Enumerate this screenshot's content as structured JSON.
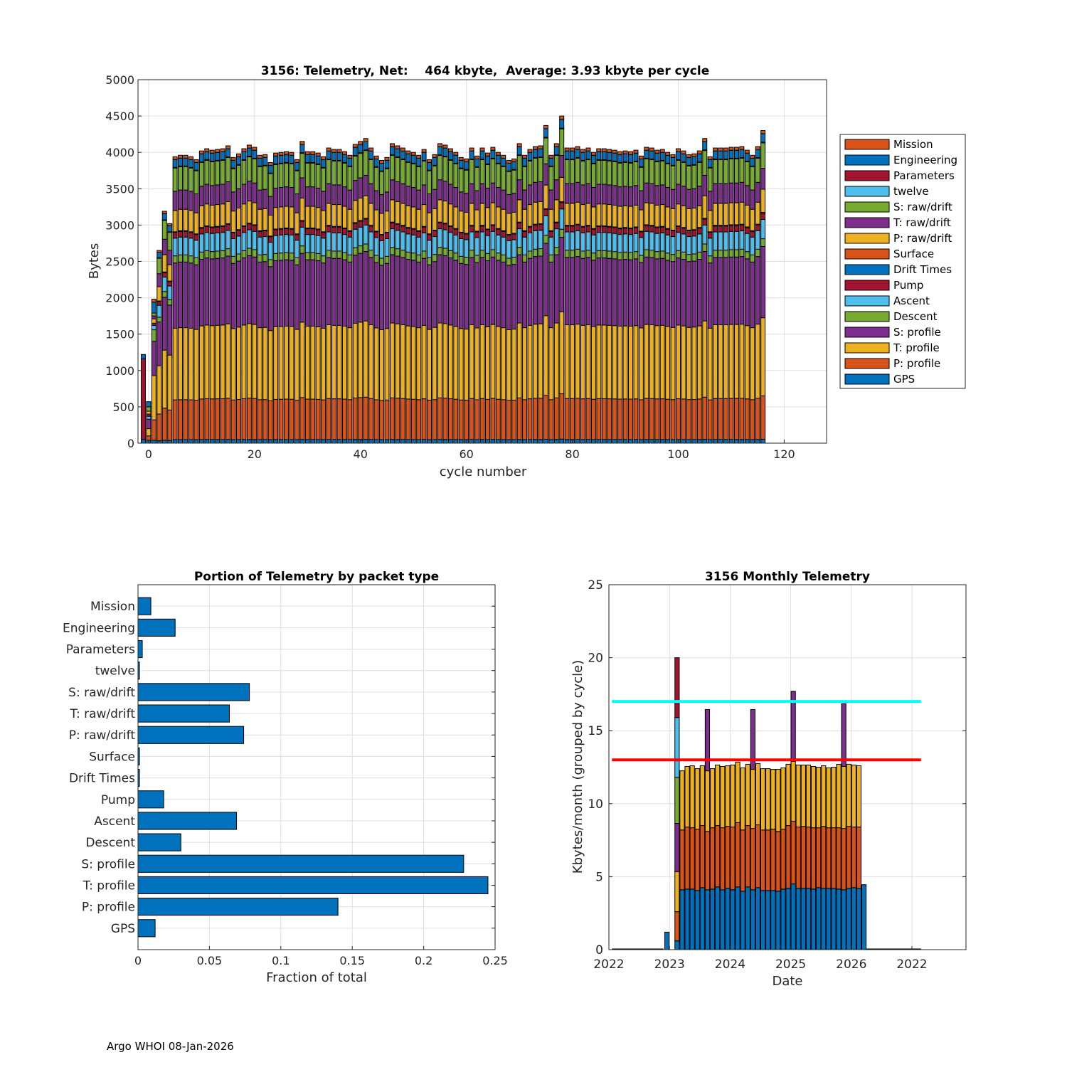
{
  "footer": "Argo WHOI 08-Jan-2026",
  "colors": {
    "blue": "#0072BD",
    "orange": "#D95319",
    "yellow": "#EDB120",
    "purple": "#7E2F8E",
    "green": "#77AC30",
    "cyan": "#4DBEEE",
    "red": "#A2142F"
  },
  "chart_data": [
    {
      "type": "bar",
      "stacked": true,
      "title": "3156: Telemetry, Net:    464 kbyte,  Average: 3.93 kbyte per cycle",
      "xlabel": "cycle number",
      "ylabel": "Bytes",
      "xlim": [
        -2,
        128
      ],
      "ylim": [
        0,
        5000
      ],
      "xticks": [
        0,
        20,
        40,
        60,
        80,
        100,
        120
      ],
      "yticks": [
        0,
        500,
        1000,
        1500,
        2000,
        2500,
        3000,
        3500,
        4000,
        4500,
        5000
      ],
      "grid": true,
      "legend_position": "right",
      "series_bottom_to_top": [
        "GPS",
        "P: profile",
        "T: profile",
        "S: profile",
        "Descent",
        "Ascent",
        "Pump",
        "Drift Times",
        "Surface",
        "P: raw/drift",
        "T: raw/drift",
        "S: raw/drift",
        "twelve",
        "Parameters",
        "Engineering",
        "Mission"
      ],
      "series_colors": [
        "#0072BD",
        "#D95319",
        "#EDB120",
        "#7E2F8E",
        "#77AC30",
        "#4DBEEE",
        "#A2142F",
        "#0072BD",
        "#D95319",
        "#EDB120",
        "#7E2F8E",
        "#77AC30",
        "#4DBEEE",
        "#A2142F",
        "#0072BD",
        "#D95319"
      ],
      "legend_top_to_bottom": [
        "Mission",
        "Engineering",
        "Parameters",
        "twelve",
        "S: raw/drift",
        "T: raw/drift",
        "P: raw/drift",
        "Surface",
        "Drift Times",
        "Pump",
        "Ascent",
        "Descent",
        "S: profile",
        "T: profile",
        "P: profile",
        "GPS"
      ],
      "typical_cycle_bytes": [
        50,
        560,
        1010,
        920,
        100,
        250,
        80,
        5,
        5,
        300,
        270,
        330,
        2,
        5,
        110,
        40
      ],
      "explicit_cycles": {
        "-1": [
          50,
          0,
          0,
          0,
          0,
          0,
          0,
          0,
          0,
          0,
          0,
          0,
          0,
          1110,
          60,
          0
        ],
        "0": [
          40,
          60,
          100,
          130,
          0,
          40,
          30,
          0,
          0,
          40,
          0,
          60,
          0,
          0,
          70,
          0
        ],
        "1": [
          40,
          280,
          610,
          470,
          160,
          60,
          30,
          0,
          0,
          60,
          40,
          40,
          0,
          0,
          150,
          40
        ]
      },
      "first_scaled_cycle": 2,
      "cycle_totals_from_2": [
        2650,
        3190,
        3020,
        3940,
        3960,
        3960,
        3940,
        3900,
        4020,
        4050,
        4030,
        4040,
        4050,
        4090,
        3930,
        3980,
        4050,
        4100,
        4070,
        3960,
        3970,
        3860,
        3990,
        4000,
        4010,
        4000,
        3900,
        4150,
        4010,
        4010,
        3990,
        3940,
        4060,
        4040,
        4040,
        4010,
        3960,
        4110,
        4150,
        4190,
        4060,
        3950,
        3890,
        3930,
        4120,
        4090,
        4060,
        4020,
        4000,
        3960,
        4040,
        3900,
        3970,
        4120,
        4100,
        4050,
        4000,
        3930,
        3910,
        4060,
        3950,
        4060,
        3990,
        4070,
        4000,
        3960,
        3890,
        3910,
        4120,
        3960,
        4040,
        4080,
        4090,
        4370,
        3960,
        4120,
        4500,
        4060,
        4060,
        4080,
        4040,
        4060,
        4000,
        4050,
        4050,
        4040,
        4030,
        4010,
        4020,
        4010,
        4030,
        3950,
        4070,
        4060,
        4030,
        4040,
        4000,
        3970,
        4050,
        4020,
        3970,
        3980,
        4020,
        4190,
        3940,
        4060,
        4060,
        4060,
        4070,
        4070,
        4080,
        4030,
        3960,
        4080,
        4300
      ]
    },
    {
      "type": "bar",
      "orientation": "horizontal",
      "title": "Portion of Telemetry by packet type",
      "xlabel": "Fraction of total",
      "xlim": [
        0,
        0.25
      ],
      "xticks": [
        "0",
        "0.05",
        "0.1",
        "0.15",
        "0.2",
        "0.25"
      ],
      "grid": true,
      "categories": [
        "Mission",
        "Engineering",
        "Parameters",
        "twelve",
        "S: raw/drift",
        "T: raw/drift",
        "P: raw/drift",
        "Surface",
        "Drift Times",
        "Pump",
        "Ascent",
        "Descent",
        "S: profile",
        "T: profile",
        "P: profile",
        "GPS"
      ],
      "values": [
        0.009,
        0.026,
        0.003,
        0.001,
        0.078,
        0.064,
        0.074,
        0.001,
        0.001,
        0.018,
        0.069,
        0.03,
        0.228,
        0.245,
        0.14,
        0.012
      ],
      "color": "#0072BD"
    },
    {
      "type": "bar",
      "stacked": true,
      "title": "3156 Monthly Telemetry",
      "xlabel": "Date",
      "ylabel": "Kbytes/month (grouped by cycle)",
      "ylim": [
        0,
        25
      ],
      "yticks": [
        0,
        5,
        10,
        15,
        20,
        25
      ],
      "xtick_labels": [
        "2022",
        "2023",
        "2024",
        "2025",
        "2026",
        "2022"
      ],
      "xtick_years": [
        2022,
        2023,
        2024,
        2025,
        2026,
        2027
      ],
      "xlim_years": [
        2022,
        2027.9
      ],
      "grid": true,
      "reference_lines": [
        {
          "value": 17,
          "color": "#00FFFF"
        },
        {
          "value": 13,
          "color": "#FF0000"
        }
      ],
      "reference_line_extent_years": [
        2022.05,
        2027.15
      ],
      "zero_months_years": [
        [
          2022.05,
          2022.9
        ],
        [
          2026.25,
          2027.15
        ]
      ],
      "single_bars": [
        {
          "month": "2022-12",
          "value": 1.2,
          "color": "#0072BD"
        },
        {
          "month": "2026-03",
          "value": 4.45,
          "color": "#0072BD"
        }
      ],
      "first_month": {
        "month": "2023-02",
        "stack_tops": [
          0.6,
          2.6,
          5.35,
          8.65,
          11.8,
          15.9,
          20.0
        ],
        "colors": [
          "#0072BD",
          "#D95319",
          "#EDB120",
          "#7E2F8E",
          "#77AC30",
          "#4DBEEE",
          "#A2142F"
        ]
      },
      "regular_months_start": "2023-03",
      "regular_colors": [
        "#0072BD",
        "#D95319",
        "#EDB120",
        "#7E2F8E"
      ],
      "blue_tops": [
        4.1,
        4.15,
        4.15,
        4.05,
        4.25,
        4.1,
        4.15,
        4.3,
        4.1,
        4.2,
        4.1,
        4.3,
        4.0,
        4.3,
        4.1,
        4.25,
        4.05,
        4.05,
        4.05,
        4.0,
        4.15,
        4.2,
        4.5,
        4.2,
        4.2,
        4.2,
        4.15,
        4.25,
        4.2,
        4.2,
        4.2,
        4.15,
        4.1,
        4.2,
        4.25,
        4.2
      ],
      "orange_tops": [
        8.2,
        8.4,
        8.35,
        8.25,
        8.5,
        8.1,
        8.35,
        8.5,
        8.35,
        8.45,
        8.4,
        8.7,
        8.2,
        8.5,
        8.3,
        8.55,
        8.2,
        8.2,
        8.25,
        8.1,
        8.25,
        8.5,
        8.8,
        8.4,
        8.45,
        8.4,
        8.35,
        8.35,
        8.45,
        8.35,
        8.35,
        8.35,
        8.3,
        8.45,
        8.4,
        8.4
      ],
      "yellow_tops": [
        12.25,
        12.55,
        12.6,
        12.4,
        12.6,
        12.25,
        12.4,
        12.65,
        12.55,
        12.6,
        12.65,
        12.85,
        12.45,
        12.7,
        12.35,
        12.75,
        12.4,
        12.4,
        12.35,
        12.35,
        12.45,
        12.7,
        12.9,
        12.65,
        12.65,
        12.65,
        12.55,
        12.5,
        12.6,
        12.45,
        12.5,
        12.7,
        12.55,
        12.7,
        12.65,
        12.6
      ],
      "purple_spikes": {
        "5": 16.45,
        "14": 16.45,
        "22": 17.7,
        "32": 16.85
      }
    }
  ]
}
